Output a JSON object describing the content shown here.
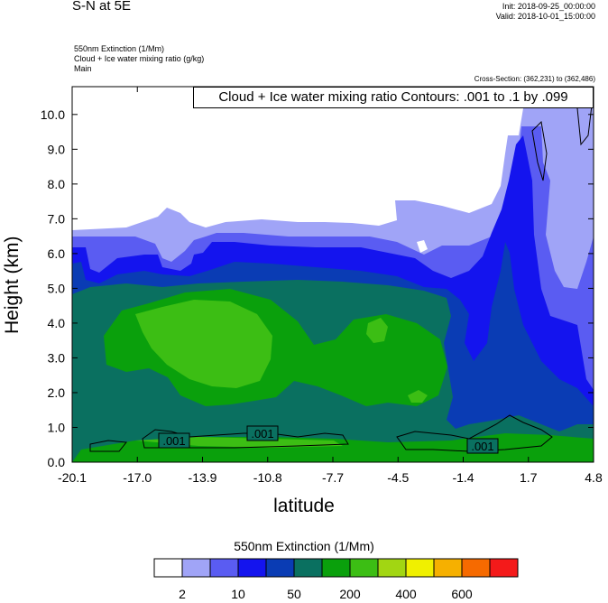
{
  "header": {
    "title": "S-N at 5E",
    "init": "Init: 2018-09-25_00:00:00",
    "valid": "Valid: 2018-10-01_15:00:00",
    "field1": "550nm Extinction   (1/Mm)",
    "field2": "Cloud + Ice water mixing ratio   (g/kg)",
    "field3": "Main",
    "cross_section": "Cross-Section: (362,231) to (362,486)",
    "contour_info": "Cloud + Ice water mixing ratio Contours: .001 to .1 by .099"
  },
  "chart_data": {
    "type": "heatmap",
    "xlabel": "latitude",
    "ylabel": "Height (km)",
    "xlim": [
      -20.1,
      4.8
    ],
    "ylim": [
      0.0,
      10.8
    ],
    "x_ticks": [
      "-20.1",
      "-17.0",
      "-13.9",
      "-10.8",
      "-7.7",
      "-4.5",
      "-1.4",
      "1.7",
      "4.8"
    ],
    "y_ticks": [
      "0.0",
      "1.0",
      "2.0",
      "3.0",
      "4.0",
      "5.0",
      "6.0",
      "7.0",
      "8.0",
      "9.0",
      "10.0"
    ],
    "y_values": [
      0,
      1,
      2,
      3,
      4,
      5,
      6,
      7,
      8,
      9,
      10
    ],
    "colorbar": {
      "title": "550nm Extinction  (1/Mm)",
      "colors": [
        "#ffffff",
        "#a0a4f7",
        "#5a5cf2",
        "#1414ee",
        "#0a3cb4",
        "#0a7060",
        "#0aa00c",
        "#3cbe14",
        "#a2d612",
        "#f0f000",
        "#f6b000",
        "#f66a00",
        "#f41a1a"
      ],
      "labels": [
        "2",
        "10",
        "50",
        "200",
        "400",
        "600"
      ]
    },
    "contour_labels": [
      ".001",
      ".001",
      ".001"
    ],
    "field_colors": {
      "c1": "#a0a4f7",
      "c2": "#5a5cf2",
      "c3": "#1414ee",
      "c4": "#0a3cb4",
      "c5": "#0a7060",
      "c6": "#0aa00c",
      "c7": "#3cbe14"
    }
  }
}
